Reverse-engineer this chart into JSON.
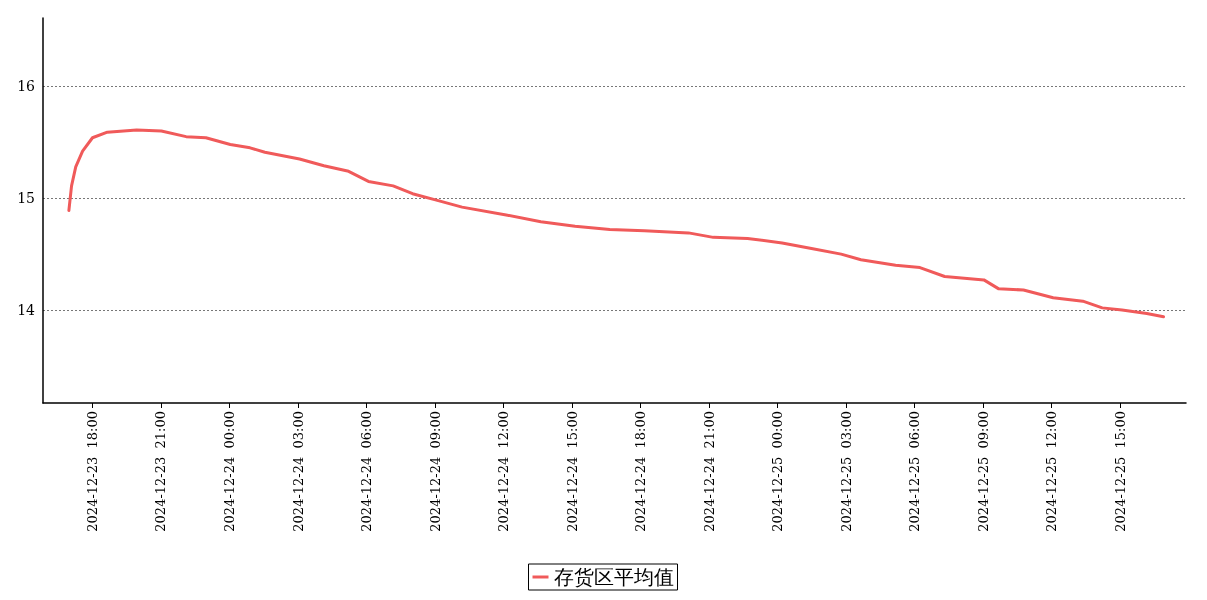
{
  "chart_data": {
    "type": "line",
    "legend": "bottom",
    "grid": "y",
    "marker": "none",
    "line_style": "solid",
    "xlim": [
      "2024-12-23T15:50",
      "2024-12-25T17:53"
    ],
    "xticks": [
      {
        "value": "2024-12-23T18:00",
        "label": "2024-12-23  18:00"
      },
      {
        "value": "2024-12-23T21:00",
        "label": "2024-12-23  21:00"
      },
      {
        "value": "2024-12-24T00:00",
        "label": "2024-12-24  00:00"
      },
      {
        "value": "2024-12-24T03:00",
        "label": "2024-12-24  03:00"
      },
      {
        "value": "2024-12-24T06:00",
        "label": "2024-12-24  06:00"
      },
      {
        "value": "2024-12-24T09:00",
        "label": "2024-12-24  09:00"
      },
      {
        "value": "2024-12-24T12:00",
        "label": "2024-12-24  12:00"
      },
      {
        "value": "2024-12-24T15:00",
        "label": "2024-12-24  15:00"
      },
      {
        "value": "2024-12-24T18:00",
        "label": "2024-12-24  18:00"
      },
      {
        "value": "2024-12-24T21:00",
        "label": "2024-12-24  21:00"
      },
      {
        "value": "2024-12-25T00:00",
        "label": "2024-12-25  00:00"
      },
      {
        "value": "2024-12-25T03:00",
        "label": "2024-12-25  03:00"
      },
      {
        "value": "2024-12-25T06:00",
        "label": "2024-12-25  06:00"
      },
      {
        "value": "2024-12-25T09:00",
        "label": "2024-12-25  09:00"
      },
      {
        "value": "2024-12-25T12:00",
        "label": "2024-12-25  12:00"
      },
      {
        "value": "2024-12-25T15:00",
        "label": "2024-12-25  15:00"
      }
    ],
    "ylim": [
      13.17,
      16.61
    ],
    "yticks": [
      14,
      15,
      16
    ],
    "x": [
      "2024-12-23T16:58",
      "2024-12-23T17:05",
      "2024-12-23T17:16",
      "2024-12-23T17:34",
      "2024-12-23T18:00",
      "2024-12-23T18:39",
      "2024-12-23T19:56",
      "2024-12-23T21:01",
      "2024-12-23T22:06",
      "2024-12-23T22:58",
      "2024-12-24T00:02",
      "2024-12-24T00:54",
      "2024-12-24T01:33",
      "2024-12-24T03:04",
      "2024-12-24T04:08",
      "2024-12-24T05:13",
      "2024-12-24T06:05",
      "2024-12-24T07:10",
      "2024-12-24T08:01",
      "2024-12-24T09:06",
      "2024-12-24T10:11",
      "2024-12-24T12:07",
      "2024-12-24T13:38",
      "2024-12-24T15:08",
      "2024-12-24T16:39",
      "2024-12-24T18:10",
      "2024-12-24T20:06",
      "2024-12-24T21:11",
      "2024-12-24T22:41",
      "2024-12-25T00:12",
      "2024-12-25T01:29",
      "2024-12-25T02:47",
      "2024-12-25T03:39",
      "2024-12-25T05:10",
      "2024-12-25T06:14",
      "2024-12-25T07:19",
      "2024-12-25T09:02",
      "2024-12-25T09:41",
      "2024-12-25T10:46",
      "2024-12-25T12:04",
      "2024-12-25T13:22",
      "2024-12-25T14:13",
      "2024-12-25T15:05",
      "2024-12-25T16:10",
      "2024-12-25T16:54"
    ],
    "series": [
      {
        "name": "存货区平均值",
        "color": "#f05a5a",
        "values": [
          14.89,
          15.11,
          15.28,
          15.42,
          15.54,
          15.59,
          15.61,
          15.6,
          15.55,
          15.54,
          15.48,
          15.45,
          15.41,
          15.35,
          15.29,
          15.24,
          15.15,
          15.11,
          15.04,
          14.98,
          14.92,
          14.85,
          14.79,
          14.75,
          14.72,
          14.71,
          14.69,
          14.65,
          14.64,
          14.6,
          14.55,
          14.5,
          14.45,
          14.4,
          14.38,
          14.3,
          14.27,
          14.19,
          14.18,
          14.11,
          14.08,
          14.02,
          14,
          13.97,
          13.94
        ]
      }
    ]
  }
}
